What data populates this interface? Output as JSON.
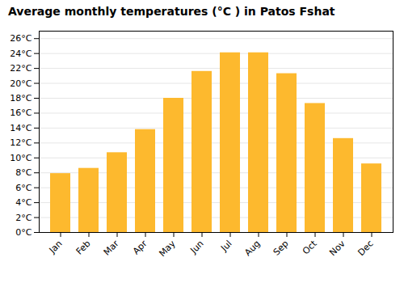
{
  "chart_data": {
    "type": "bar",
    "title": "Average monthly temperatures (°C ) in Patos Fshat",
    "categories": [
      "Jan",
      "Feb",
      "Mar",
      "Apr",
      "May",
      "Jun",
      "Jul",
      "Aug",
      "Sep",
      "Oct",
      "Nov",
      "Dec"
    ],
    "values": [
      7.9,
      8.6,
      10.7,
      13.8,
      18.0,
      21.6,
      24.1,
      24.1,
      21.3,
      17.3,
      12.6,
      9.2
    ],
    "color": "#FDB92E",
    "ylim": [
      0,
      27
    ],
    "yticks": [
      {
        "value": 0,
        "label": "0°C"
      },
      {
        "value": 2,
        "label": "2°C"
      },
      {
        "value": 4,
        "label": "4°C"
      },
      {
        "value": 6,
        "label": "6°C"
      },
      {
        "value": 8,
        "label": "8°C"
      },
      {
        "value": 10,
        "label": "10°C"
      },
      {
        "value": 12,
        "label": "12°C"
      },
      {
        "value": 14,
        "label": "14°C"
      },
      {
        "value": 16,
        "label": "16°C"
      },
      {
        "value": 18,
        "label": "18°C"
      },
      {
        "value": 20,
        "label": "20°C"
      },
      {
        "value": 22,
        "label": "22°C"
      },
      {
        "value": 24,
        "label": "24°C"
      },
      {
        "value": 26,
        "label": "26°C"
      }
    ],
    "grid": true
  }
}
